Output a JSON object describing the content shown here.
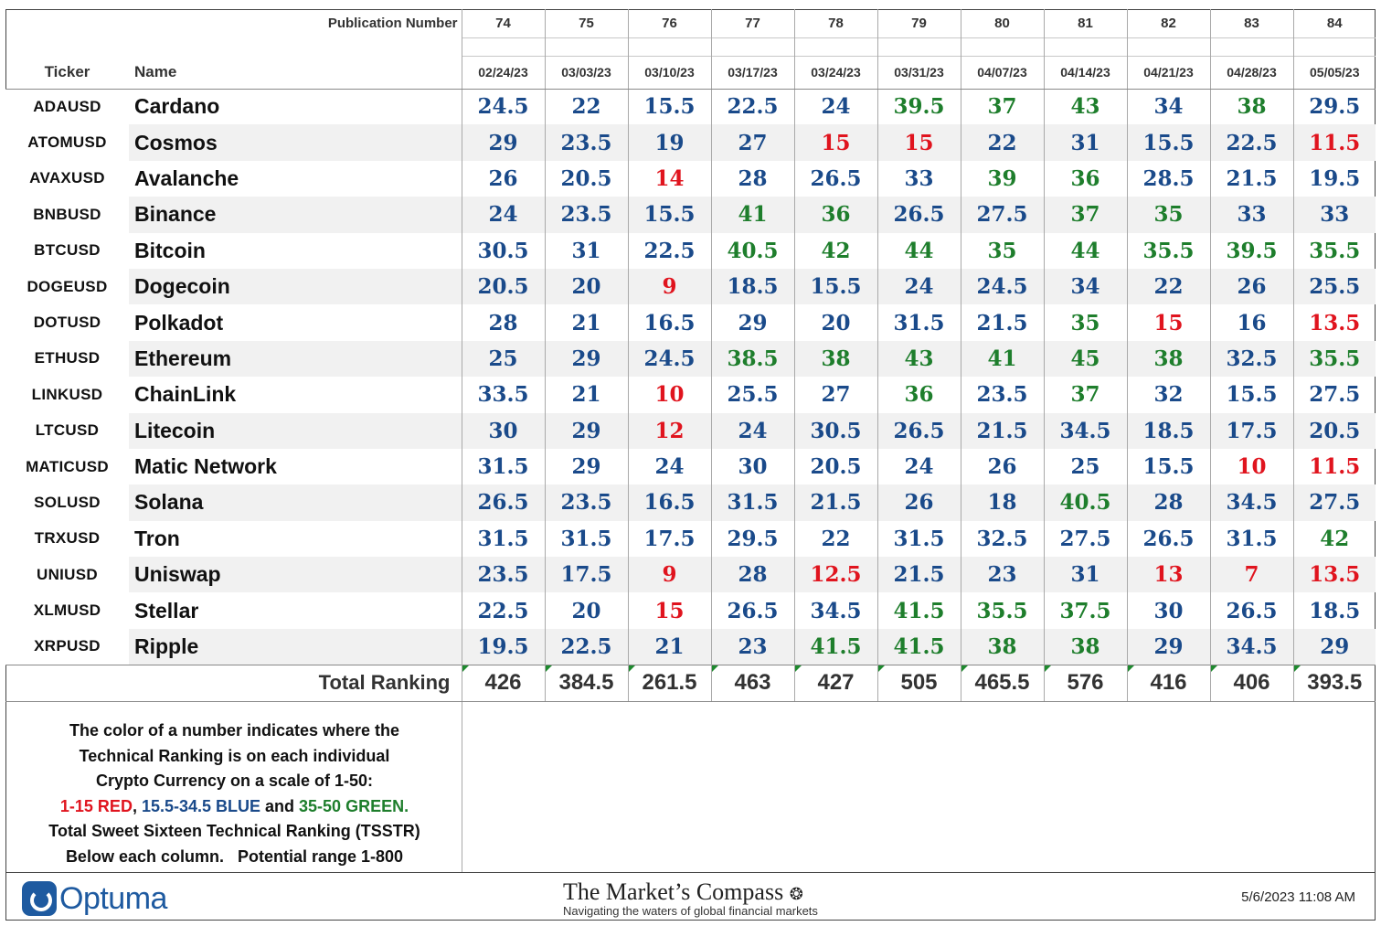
{
  "header": {
    "publication_label": "Publication Number",
    "ticker_label": "Ticker",
    "name_label": "Name",
    "total_label": "Total Ranking"
  },
  "colors": {
    "red": "#e0141e",
    "blue": "#1a4a8a",
    "green": "#1e7e2c"
  },
  "columns": [
    {
      "pub": "74",
      "date": "02/24/23",
      "total": "426"
    },
    {
      "pub": "75",
      "date": "03/03/23",
      "total": "384.5"
    },
    {
      "pub": "76",
      "date": "03/10/23",
      "total": "261.5"
    },
    {
      "pub": "77",
      "date": "03/17/23",
      "total": "463"
    },
    {
      "pub": "78",
      "date": "03/24/23",
      "total": "427"
    },
    {
      "pub": "79",
      "date": "03/31/23",
      "total": "505"
    },
    {
      "pub": "80",
      "date": "04/07/23",
      "total": "465.5"
    },
    {
      "pub": "81",
      "date": "04/14/23",
      "total": "576"
    },
    {
      "pub": "82",
      "date": "04/21/23",
      "total": "416"
    },
    {
      "pub": "83",
      "date": "04/28/23",
      "total": "406"
    },
    {
      "pub": "84",
      "date": "05/05/23",
      "total": "393.5"
    }
  ],
  "rows": [
    {
      "ticker": "ADAUSD",
      "name": "Cardano",
      "values": [
        "24.5",
        "22",
        "15.5",
        "22.5",
        "24",
        "39.5",
        "37",
        "43",
        "34",
        "38",
        "29.5"
      ]
    },
    {
      "ticker": "ATOMUSD",
      "name": "Cosmos",
      "values": [
        "29",
        "23.5",
        "19",
        "27",
        "15",
        "15",
        "22",
        "31",
        "15.5",
        "22.5",
        "11.5"
      ]
    },
    {
      "ticker": "AVAXUSD",
      "name": "Avalanche",
      "values": [
        "26",
        "20.5",
        "14",
        "28",
        "26.5",
        "33",
        "39",
        "36",
        "28.5",
        "21.5",
        "19.5"
      ]
    },
    {
      "ticker": "BNBUSD",
      "name": "Binance",
      "values": [
        "24",
        "23.5",
        "15.5",
        "41",
        "36",
        "26.5",
        "27.5",
        "37",
        "35",
        "33",
        "33"
      ]
    },
    {
      "ticker": "BTCUSD",
      "name": "Bitcoin",
      "values": [
        "30.5",
        "31",
        "22.5",
        "40.5",
        "42",
        "44",
        "35",
        "44",
        "35.5",
        "39.5",
        "35.5"
      ]
    },
    {
      "ticker": "DOGEUSD",
      "name": "Dogecoin",
      "values": [
        "20.5",
        "20",
        "9",
        "18.5",
        "15.5",
        "24",
        "24.5",
        "34",
        "22",
        "26",
        "25.5"
      ]
    },
    {
      "ticker": "DOTUSD",
      "name": "Polkadot",
      "values": [
        "28",
        "21",
        "16.5",
        "29",
        "20",
        "31.5",
        "21.5",
        "35",
        "15",
        "16",
        "13.5"
      ]
    },
    {
      "ticker": "ETHUSD",
      "name": "Ethereum",
      "values": [
        "25",
        "29",
        "24.5",
        "38.5",
        "38",
        "43",
        "41",
        "45",
        "38",
        "32.5",
        "35.5"
      ]
    },
    {
      "ticker": "LINKUSD",
      "name": "ChainLink",
      "values": [
        "33.5",
        "21",
        "10",
        "25.5",
        "27",
        "36",
        "23.5",
        "37",
        "32",
        "15.5",
        "27.5"
      ]
    },
    {
      "ticker": "LTCUSD",
      "name": "Litecoin",
      "values": [
        "30",
        "29",
        "12",
        "24",
        "30.5",
        "26.5",
        "21.5",
        "34.5",
        "18.5",
        "17.5",
        "20.5"
      ]
    },
    {
      "ticker": "MATICUSD",
      "name": "Matic Network",
      "values": [
        "31.5",
        "29",
        "24",
        "30",
        "20.5",
        "24",
        "26",
        "25",
        "15.5",
        "10",
        "11.5"
      ]
    },
    {
      "ticker": "SOLUSD",
      "name": "Solana",
      "values": [
        "26.5",
        "23.5",
        "16.5",
        "31.5",
        "21.5",
        "26",
        "18",
        "40.5",
        "28",
        "34.5",
        "27.5"
      ]
    },
    {
      "ticker": "TRXUSD",
      "name": "Tron",
      "values": [
        "31.5",
        "31.5",
        "17.5",
        "29.5",
        "22",
        "31.5",
        "32.5",
        "27.5",
        "26.5",
        "31.5",
        "42"
      ]
    },
    {
      "ticker": "UNIUSD",
      "name": "Uniswap",
      "values": [
        "23.5",
        "17.5",
        "9",
        "28",
        "12.5",
        "21.5",
        "23",
        "31",
        "13",
        "7",
        "13.5"
      ]
    },
    {
      "ticker": "XLMUSD",
      "name": "Stellar",
      "values": [
        "22.5",
        "20",
        "15",
        "26.5",
        "34.5",
        "41.5",
        "35.5",
        "37.5",
        "30",
        "26.5",
        "18.5"
      ]
    },
    {
      "ticker": "XRPUSD",
      "name": "Ripple",
      "values": [
        "19.5",
        "22.5",
        "21",
        "23",
        "41.5",
        "41.5",
        "38",
        "38",
        "29",
        "34.5",
        "29"
      ]
    }
  ],
  "legend": {
    "line1": "The color of a number indicates where the",
    "line2": "Technical Ranking is on each individual",
    "line3": "Crypto Currency on a scale of 1-50:",
    "red_text": "1-15 RED",
    "sep1": ", ",
    "blue_text": "15.5-34.5 BLUE",
    "sep2": " and ",
    "green_text": "35-50 GREEN.",
    "line5": "Total Sweet Sixteen Technical Ranking (TSSTR)",
    "line6": "Below each column.   Potential range 1-800"
  },
  "footer": {
    "optuma": "Optuma",
    "compass_title": "The Market’s Compass",
    "compass_subtitle": "Navigating the waters of global financial markets",
    "timestamp": "5/6/2023 11:08 AM"
  }
}
